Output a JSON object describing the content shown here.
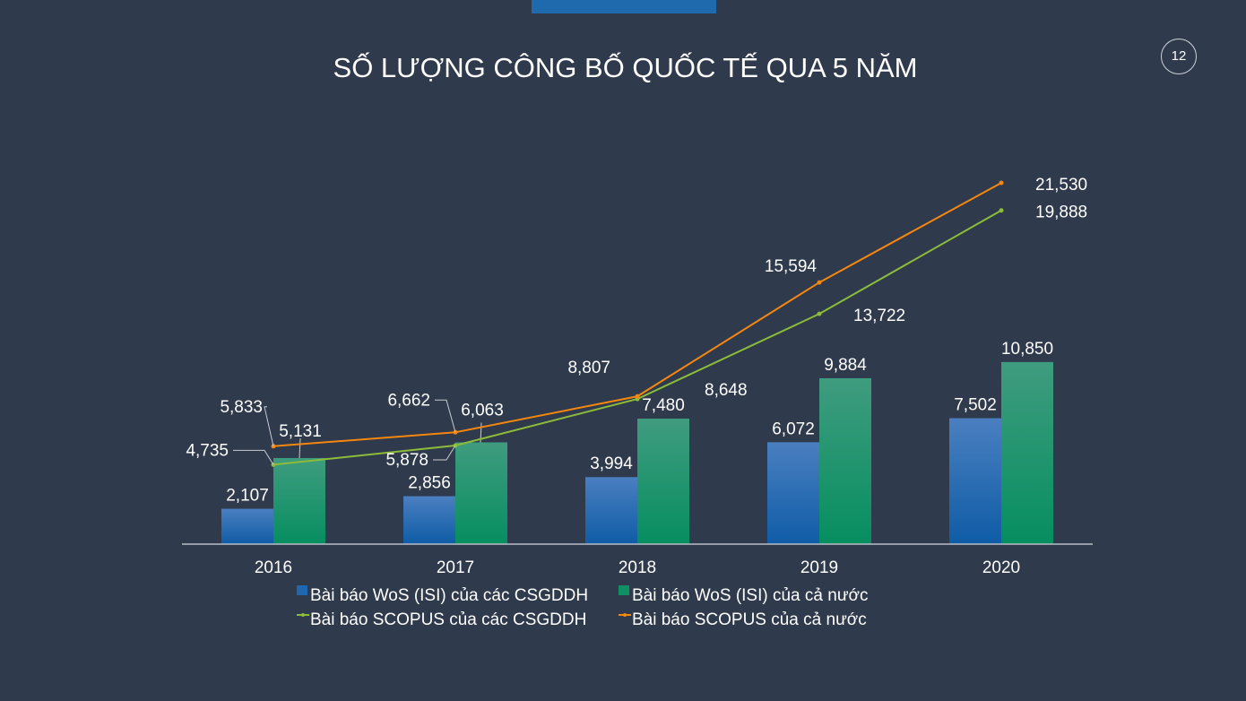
{
  "slide": {
    "title": "SỐ LƯỢNG CÔNG BỐ QUỐC TẾ QUA 5 NĂM",
    "page_number": "12"
  },
  "chart_data": {
    "type": "bar+line",
    "title": "",
    "categories": [
      "2016",
      "2017",
      "2018",
      "2019",
      "2020"
    ],
    "series": [
      {
        "name": "Bài báo WoS (ISI) của các CSGDDH",
        "kind": "bar",
        "color": "#1f67b0",
        "values": [
          2107,
          2856,
          3994,
          6072,
          7502
        ],
        "labels": [
          "2,107",
          "2,856",
          "3,994",
          "6,072",
          "7,502"
        ]
      },
      {
        "name": "Bài báo WoS (ISI) của cả nước",
        "kind": "bar",
        "color": "#0f8f63",
        "values": [
          5131,
          6063,
          7480,
          9884,
          10850
        ],
        "labels": [
          "5,131",
          "6,063",
          "7,480",
          "9,884",
          "10,850"
        ]
      },
      {
        "name": "Bài báo SCOPUS của các CSGDDH",
        "kind": "line",
        "color": "#8dbb3a",
        "values": [
          4735,
          5878,
          8648,
          13722,
          19888
        ],
        "labels": [
          "4,735",
          "5,878",
          "8,648",
          "13,722",
          "19,888"
        ]
      },
      {
        "name": "Bài báo SCOPUS của cả nước",
        "kind": "line",
        "color": "#f5870f",
        "values": [
          5833,
          6662,
          8807,
          15594,
          21530
        ],
        "labels": [
          "5,833",
          "6,662",
          "8,807",
          "15,594",
          "21,530"
        ]
      }
    ],
    "ylim": [
      0,
      25000
    ],
    "grid": false,
    "y_axis_visible": false,
    "legend": "bottom"
  }
}
